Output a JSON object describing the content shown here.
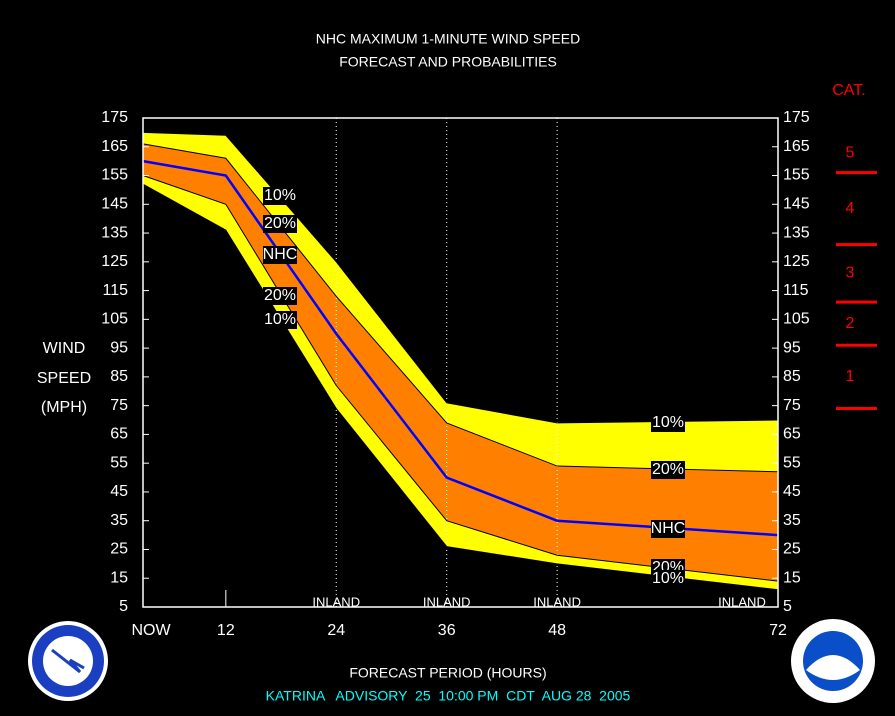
{
  "chart_data": {
    "type": "band",
    "title": "NHC MAXIMUM 1-MINUTE WIND SPEED",
    "subtitle": "FORECAST AND PROBABILITIES",
    "y_label": [
      "WIND",
      "SPEED",
      "(MPH)"
    ],
    "x_label": "FORECAST PERIOD (HOURS)",
    "footer": "KATRINA   ADVISORY  25  10:00 PM  CDT  AUG 28  2005",
    "x": [
      3,
      12,
      24,
      36,
      48,
      72
    ],
    "xlim": [
      3,
      72
    ],
    "xticks": [
      {
        "value": 3,
        "label": "NOW"
      },
      12,
      24,
      36,
      48,
      72
    ],
    "ylim": [
      5,
      175
    ],
    "yticks": [
      5,
      15,
      25,
      35,
      45,
      55,
      65,
      75,
      85,
      95,
      105,
      115,
      125,
      135,
      145,
      155,
      165,
      175
    ],
    "series": [
      {
        "name": "10%",
        "color": "#ffff00",
        "values": [
          170,
          169,
          125,
          76,
          69,
          70
        ]
      },
      {
        "name": "20%",
        "color": "#ff8000",
        "values": [
          166,
          161,
          113,
          69,
          54,
          52
        ]
      },
      {
        "name": "NHC",
        "color": "#0000ff",
        "values": [
          160,
          155,
          100,
          50,
          35,
          30
        ]
      },
      {
        "name": "20%",
        "color": "#ff8000",
        "values": [
          155,
          145,
          82,
          35,
          23,
          14
        ]
      },
      {
        "name": "10%",
        "color": "#ffff00",
        "values": [
          152,
          136,
          74,
          26,
          20,
          11
        ]
      }
    ],
    "annotations": [
      "INLAND",
      "INLAND",
      "INLAND",
      "INLAND"
    ],
    "category_title": "CAT.",
    "categories": [
      "1",
      "2",
      "3",
      "4",
      "5"
    ],
    "category_thresholds": [
      74,
      96,
      111,
      131,
      156
    ],
    "category_color": "#ff0000"
  }
}
